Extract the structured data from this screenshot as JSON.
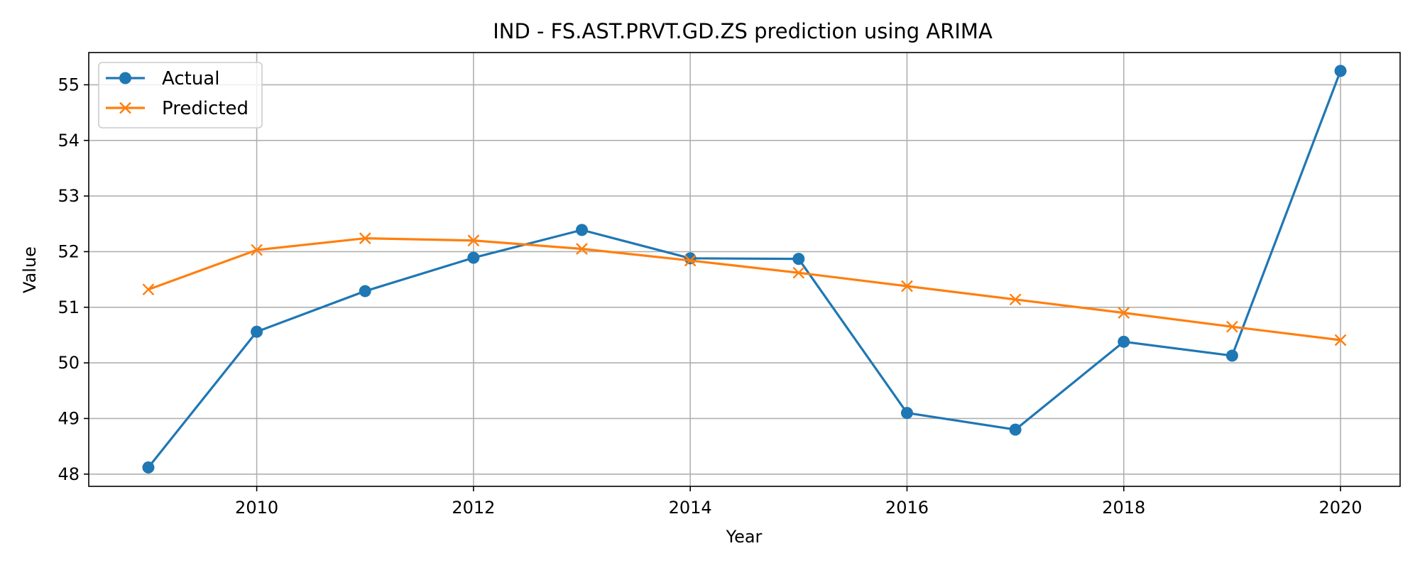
{
  "chart_data": {
    "type": "line",
    "title": "IND - FS.AST.PRVT.GD.ZS prediction using ARIMA",
    "xlabel": "Year",
    "ylabel": "Value",
    "x": [
      2009,
      2010,
      2011,
      2012,
      2013,
      2014,
      2015,
      2016,
      2017,
      2018,
      2019,
      2020
    ],
    "xlim": [
      2008.45,
      2020.55
    ],
    "ylim": [
      47.78,
      55.58
    ],
    "xticks": [
      2010,
      2012,
      2014,
      2016,
      2018,
      2020
    ],
    "yticks": [
      48,
      49,
      50,
      51,
      52,
      53,
      54,
      55
    ],
    "grid": true,
    "legend_position": "upper left",
    "series": [
      {
        "name": "Actual",
        "color": "#1f77b4",
        "marker": "circle",
        "values": [
          48.12,
          50.56,
          51.29,
          51.89,
          52.39,
          51.88,
          51.87,
          49.1,
          48.8,
          50.38,
          50.13,
          55.25
        ]
      },
      {
        "name": "Predicted",
        "color": "#ff7f0e",
        "marker": "x",
        "values": [
          51.32,
          52.03,
          52.24,
          52.2,
          52.05,
          51.84,
          51.62,
          51.38,
          51.14,
          50.9,
          50.65,
          50.41
        ]
      }
    ]
  }
}
